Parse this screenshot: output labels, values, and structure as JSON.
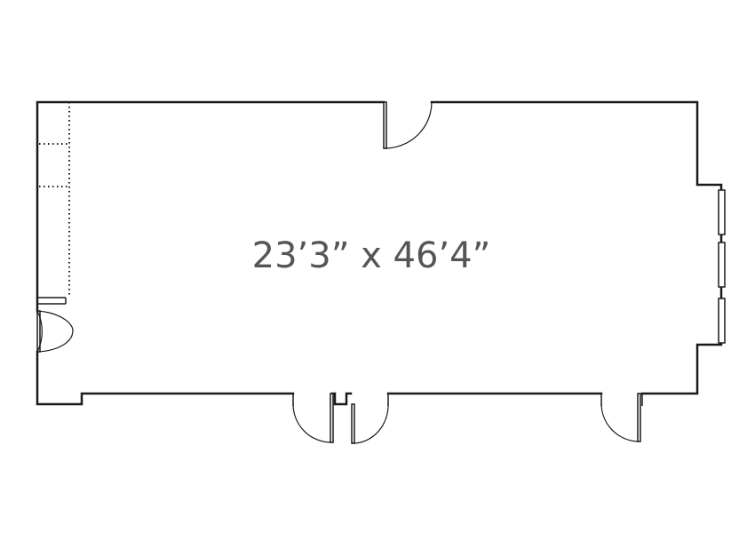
{
  "floorplan": {
    "dimensions_label": "23’3” x 46’4”",
    "line_color": "#1a1a1a",
    "label_color": "#555555"
  }
}
